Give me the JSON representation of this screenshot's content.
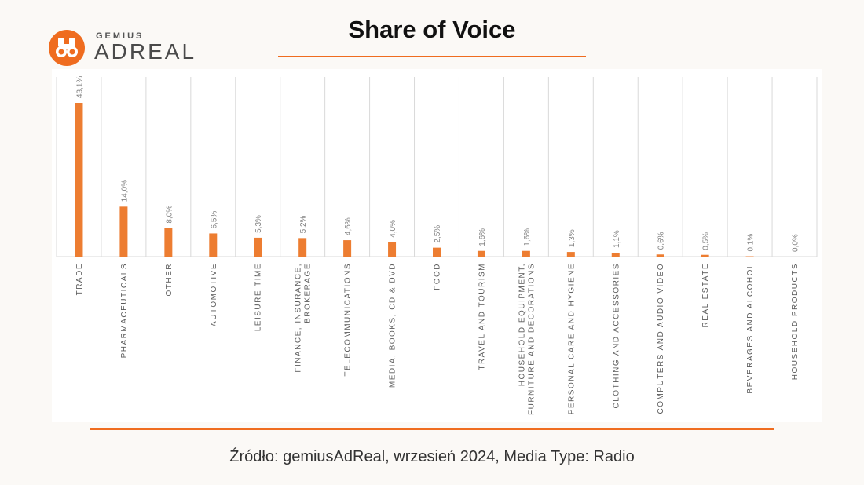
{
  "logo": {
    "brand_small": "GEMIUS",
    "brand_big": "ADREAL"
  },
  "title": "Share of Voice",
  "source": "Źródło: gemiusAdReal, wrzesień 2024, Media Type: Radio",
  "colors": {
    "accent": "#ef6c1f",
    "bar": "#ed7d31",
    "grid": "#d9d9d9"
  },
  "chart_data": {
    "type": "bar",
    "categories": [
      "TRADE",
      "PHARMACEUTICALS",
      "OTHER",
      "AUTOMOTIVE",
      "LEISURE TIME",
      "FINANCE, INSURANCE,\nBROKERAGE",
      "TELECOMMUNICATIONS",
      "MEDIA, BOOKS, CD & DVD",
      "FOOD",
      "TRAVEL AND TOURISM",
      "HOUSEHOLD EQUIPMENT,\nFURNITURE AND DECORATIONS",
      "PERSONAL CARE AND HYGIENE",
      "CLOTHING AND ACCESSORIES",
      "COMPUTERS AND AUDIO VIDEO",
      "REAL ESTATE",
      "BEVERAGES AND ALCOHOL",
      "HOUSEHOLD PRODUCTS"
    ],
    "values": [
      43.1,
      14.0,
      8.0,
      6.5,
      5.3,
      5.2,
      4.6,
      4.0,
      2.5,
      1.6,
      1.6,
      1.3,
      1.1,
      0.6,
      0.5,
      0.1,
      0.0
    ],
    "labels": [
      "43,1%",
      "14,0%",
      "8,0%",
      "6,5%",
      "5,3%",
      "5,2%",
      "4,6%",
      "4,0%",
      "2,5%",
      "1,6%",
      "1,6%",
      "1,3%",
      "1,1%",
      "0,6%",
      "0,5%",
      "0,1%",
      "0,0%"
    ],
    "title": "Share of Voice",
    "xlabel": "",
    "ylabel": "",
    "ylim": [
      0,
      43.1
    ],
    "grid": "vertical"
  }
}
